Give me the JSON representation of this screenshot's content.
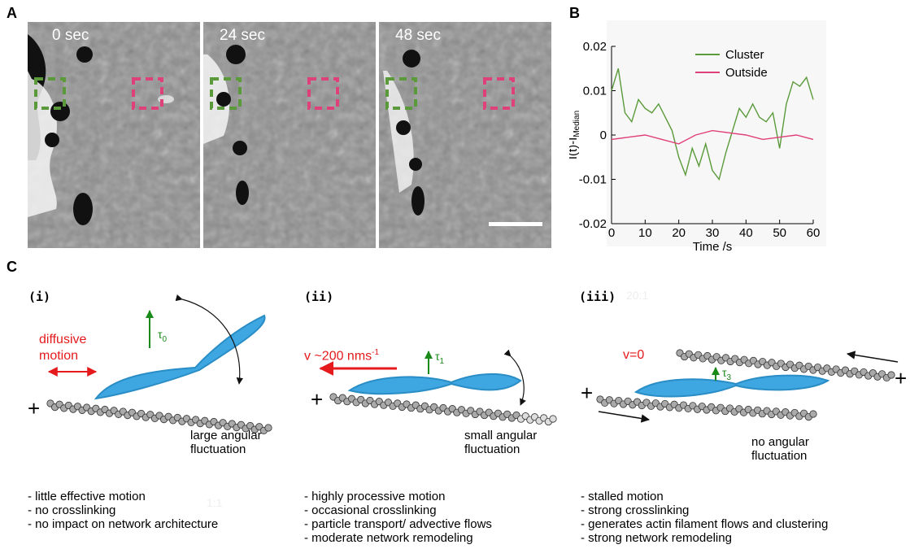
{
  "panel_letters": {
    "a": "A",
    "b": "B",
    "c": "C"
  },
  "microscopy": {
    "times": [
      "0 sec",
      "24 sec",
      "48 sec"
    ]
  },
  "chart_data": {
    "type": "line",
    "xlabel": "Time /s",
    "ylabel": "I(t)-I",
    "ylabel_sub": "Median",
    "xlim": [
      0,
      60
    ],
    "ylim": [
      -0.02,
      0.02
    ],
    "xticks": [
      "0",
      "10",
      "20",
      "30",
      "40",
      "50",
      "60"
    ],
    "yticks": [
      "0.02",
      "0.01",
      "0",
      "-0.01",
      "-0.02"
    ],
    "legend_position": "top-right",
    "series": [
      {
        "name": "Cluster",
        "color": "#5a9a3a",
        "x": [
          0,
          2,
          4,
          6,
          8,
          10,
          12,
          14,
          16,
          18,
          20,
          22,
          24,
          26,
          28,
          30,
          32,
          34,
          36,
          38,
          40,
          42,
          44,
          46,
          48,
          50,
          52,
          54,
          56,
          58,
          60
        ],
        "y": [
          0.01,
          0.015,
          0.005,
          0.003,
          0.008,
          0.006,
          0.005,
          0.007,
          0.004,
          0.001,
          -0.005,
          -0.009,
          -0.003,
          -0.007,
          -0.002,
          -0.008,
          -0.01,
          -0.004,
          0.001,
          0.006,
          0.004,
          0.007,
          0.004,
          0.003,
          0.005,
          -0.003,
          0.007,
          0.012,
          0.011,
          0.013,
          0.008
        ]
      },
      {
        "name": "Outside",
        "color": "#e0407a",
        "x": [
          0,
          5,
          10,
          15,
          20,
          25,
          30,
          35,
          40,
          45,
          50,
          55,
          60
        ],
        "y": [
          -0.001,
          -0.0005,
          0.0,
          -0.001,
          -0.002,
          0.0,
          0.001,
          0.0005,
          0.0,
          -0.001,
          -0.0005,
          0.0,
          -0.001
        ]
      }
    ]
  },
  "panel_c": {
    "i": {
      "label": "(i)",
      "motion": "diffusive\nmotion",
      "tau": "τ",
      "tau_sub": "0",
      "angular": "large angular\nfluctuation",
      "bullets": [
        "- little effective motion",
        "- no crosslinking",
        "- no impact on network architecture"
      ]
    },
    "ii": {
      "label": "(ii)",
      "velocity": "v ~200 nms",
      "velocity_sup": "-1",
      "tau": "τ",
      "tau_sub": "1",
      "angular": "small angular\nfluctuation",
      "bullets": [
        "- highly processive motion",
        "- occasional crosslinking",
        "- particle transport/ advective flows",
        "- moderate network remodeling"
      ]
    },
    "iii": {
      "label": "(iii)",
      "velocity": "v=0",
      "tau": "τ",
      "tau_sub": "3",
      "angular": "no angular\nfluctuation",
      "bullets": [
        "- stalled motion",
        "- strong crosslinking",
        "- generates actin filament flows and clustering",
        "- strong network remodeling"
      ]
    },
    "plus": "+",
    "faint_a": "20:1",
    "faint_b": "1:1"
  }
}
